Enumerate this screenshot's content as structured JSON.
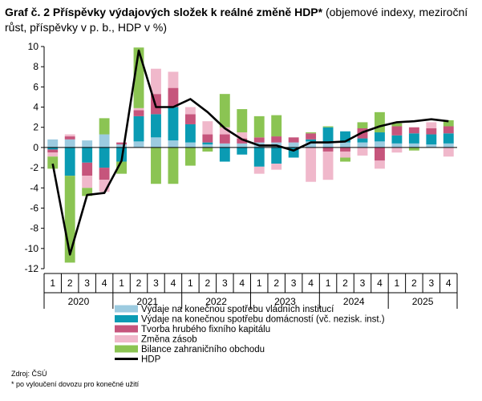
{
  "header": {
    "title_bold": "Graf č. 2 Příspěvky výdajových složek k reálné změně HDP*",
    "title_rest": " (objemové indexy, meziroční růst, příspěvky v p. b., HDP v %)"
  },
  "chart_data": {
    "type": "bar",
    "subtype": "stacked bar with line",
    "title": "Graf č. 2 Příspěvky výdajových složek k reálné změně HDP*",
    "ylim": [
      -12,
      10
    ],
    "yticks": [
      -12,
      -10,
      -8,
      -6,
      -4,
      -2,
      0,
      2,
      4,
      6,
      8,
      10
    ],
    "categories": [
      "1",
      "2",
      "3",
      "4",
      "1",
      "2",
      "3",
      "4",
      "1",
      "2",
      "3",
      "4",
      "1",
      "2",
      "3",
      "4",
      "1",
      "2",
      "3",
      "4",
      "1",
      "2",
      "3",
      "4"
    ],
    "years": [
      "2020",
      "2021",
      "2022",
      "2023",
      "2024",
      "2025"
    ],
    "series": [
      {
        "name": "Výdaje na konečnou spotřebu vládních institucí",
        "color": "#9ccbe0",
        "values": [
          0.8,
          0.8,
          0.7,
          1.3,
          0.3,
          0.6,
          1.0,
          0.7,
          0.5,
          0.3,
          0.4,
          0.4,
          0.5,
          0.5,
          0.5,
          0.6,
          0.5,
          0.5,
          0.5,
          0.6,
          0.4,
          0.4,
          0.3,
          0.4
        ]
      },
      {
        "name": "Výdaje na konečnou spotřebu domácností (vč. nezisk. inst.)",
        "color": "#0a9bb3",
        "values": [
          -0.2,
          -2.8,
          -1.5,
          -2.0,
          -1.4,
          2.5,
          2.3,
          3.3,
          1.8,
          0.2,
          -1.4,
          -0.7,
          -1.9,
          -1.6,
          -1.0,
          0.2,
          1.5,
          1.1,
          0.4,
          0.9,
          0.8,
          1.0,
          1.0,
          1.0
        ]
      },
      {
        "name": "Tvorba hrubého fixního kapitálu",
        "color": "#c6557c",
        "values": [
          -0.3,
          0.3,
          -1.3,
          -1.2,
          0.2,
          0.6,
          2.0,
          1.9,
          1.0,
          0.8,
          0.9,
          0.5,
          0.5,
          0.6,
          0.5,
          0.6,
          -0.4,
          -0.4,
          1.0,
          -1.3,
          0.9,
          0.6,
          0.6,
          0.7
        ]
      },
      {
        "name": "Změna zásob",
        "color": "#f0b8cb",
        "values": [
          -0.4,
          0.2,
          -1.2,
          -1.2,
          0.0,
          0.2,
          2.5,
          1.6,
          0.7,
          1.3,
          0.7,
          0.6,
          -0.7,
          -0.6,
          0.0,
          -3.4,
          -2.8,
          -0.6,
          -0.8,
          -0.8,
          -0.5,
          0.0,
          0.6,
          -0.9
        ]
      },
      {
        "name": "Bilance zahraničního obchodu",
        "color": "#8bc453",
        "values": [
          -1.2,
          -8.6,
          -0.8,
          1.6,
          -1.2,
          6.0,
          -3.6,
          -3.6,
          -1.8,
          -0.4,
          3.3,
          2.3,
          2.1,
          2.1,
          0.0,
          0.1,
          0.1,
          -0.4,
          0.6,
          2.0,
          0.3,
          -0.3,
          0.0,
          0.6
        ]
      }
    ],
    "line": {
      "name": "HDP",
      "color": "#000000",
      "values": [
        -1.6,
        -10.6,
        -4.7,
        -4.5,
        -1.3,
        9.6,
        4.0,
        4.0,
        4.8,
        3.5,
        1.9,
        0.8,
        0.2,
        0.2,
        -0.3,
        0.5,
        0.5,
        0.6,
        1.5,
        2.1,
        2.5,
        2.6,
        2.8,
        2.6
      ]
    }
  },
  "footer": {
    "source": "Zdroj: ČSÚ",
    "note": "* po vyloučení dovozu pro konečné užití"
  }
}
